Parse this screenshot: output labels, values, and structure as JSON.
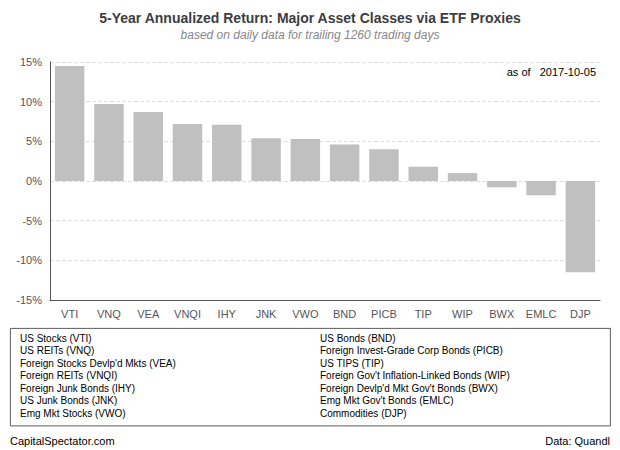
{
  "chart_data": {
    "type": "bar",
    "title": "5-Year Annualized Return: Major Asset Classes via ETF Proxies",
    "subtitle": "based on daily data for trailing 1260 trading days",
    "categories": [
      "VTI",
      "VNQ",
      "VEA",
      "VNQI",
      "IHY",
      "JNK",
      "VWO",
      "BND",
      "PICB",
      "TIP",
      "WIP",
      "BWX",
      "EMLC",
      "DJP"
    ],
    "values": [
      14.5,
      9.7,
      8.7,
      7.2,
      7.1,
      5.4,
      5.3,
      4.6,
      4.0,
      1.8,
      1.0,
      -0.8,
      -1.8,
      -11.5
    ],
    "color": "#c0c0c0",
    "ylim": [
      -15,
      15
    ],
    "yticks": [
      {
        "value": -15,
        "label": "-15%"
      },
      {
        "value": -10,
        "label": "-10%"
      },
      {
        "value": -5,
        "label": "-5%"
      },
      {
        "value": 0,
        "label": "0%"
      },
      {
        "value": 5,
        "label": "5%"
      },
      {
        "value": 10,
        "label": "10%"
      },
      {
        "value": 15,
        "label": "15%"
      }
    ],
    "grid": true,
    "annotations": {
      "date_label": "as of   2017-10-05",
      "notes_left": [
        "US Stocks (VTI)",
        "US REITs (VNQ)",
        "Foreign Stocks Devlp'd Mkts (VEA)",
        "Foreign REITs (VNQI)",
        "Foreign Junk Bonds (IHY)",
        "US Junk Bonds (JNK)",
        "Emg Mkt Stocks (VWO)"
      ],
      "notes_right": [
        "US Bonds (BND)",
        "Foreign Invest-Grade Corp Bonds (PICB)",
        "US TIPS (TIP)",
        "Foreign Gov't Inflation-Linked Bonds (WIP)",
        "Foreign Devlp'd Mkt Gov't Bonds (BWX)",
        "Emg Mkt Gov't Bonds (EMLC)",
        "Commodities (DJP)"
      ],
      "footer_left": "CapitalSpectator.com",
      "footer_right": "Data: Quandl"
    }
  }
}
